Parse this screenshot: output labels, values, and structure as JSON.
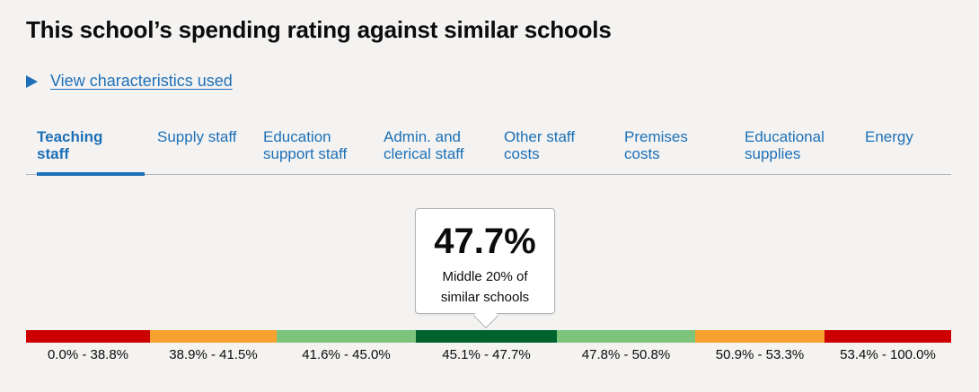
{
  "page": {
    "title": "This school’s spending rating against similar schools"
  },
  "details": {
    "link_text": "View characteristics used"
  },
  "tabs": [
    {
      "line1": "Teaching",
      "line2": "staff",
      "active": true
    },
    {
      "line1": "Supply staff",
      "line2": "",
      "active": false
    },
    {
      "line1": "Education",
      "line2": "support staff",
      "active": false
    },
    {
      "line1": "Admin. and",
      "line2": "clerical staff",
      "active": false
    },
    {
      "line1": "Other staff",
      "line2": "costs",
      "active": false
    },
    {
      "line1": "Premises",
      "line2": "costs",
      "active": false
    },
    {
      "line1": "Educational",
      "line2": "supplies",
      "active": false
    },
    {
      "line1": "Energy",
      "line2": "",
      "active": false
    }
  ],
  "tooltip": {
    "value": "47.7%",
    "description": "Middle 20% of similar schools"
  },
  "rating_bands": [
    {
      "label": "0.0% - 38.8%",
      "color": "#cc0000"
    },
    {
      "label": "38.9% - 41.5%",
      "color": "#f7a12f"
    },
    {
      "label": "41.6% - 45.0%",
      "color": "#7cc47c"
    },
    {
      "label": "45.1% - 47.7%",
      "color": "#00632e"
    },
    {
      "label": "47.8% - 50.8%",
      "color": "#7cc47c"
    },
    {
      "label": "50.9% - 53.3%",
      "color": "#f7a12f"
    },
    {
      "label": "53.4% - 100.0%",
      "color": "#cc0000"
    }
  ]
}
